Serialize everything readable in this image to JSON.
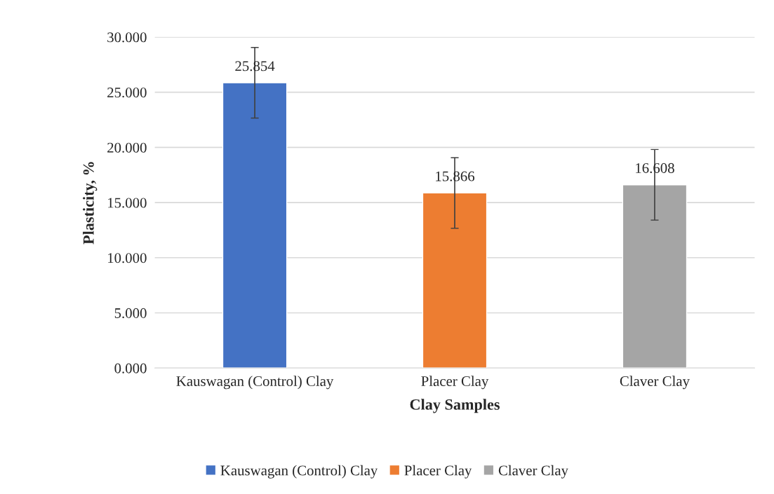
{
  "chart_data": {
    "type": "bar",
    "xlabel": "Clay Samples",
    "ylabel": "Plasticity, %",
    "categories": [
      "Kauswagan (Control) Clay",
      "Placer Clay",
      "Claver Clay"
    ],
    "series": [
      {
        "name": "Kauswagan (Control) Clay",
        "color": "#4472c4",
        "values": [
          25.854,
          null,
          null
        ],
        "errors": [
          3.2,
          null,
          null
        ]
      },
      {
        "name": "Placer Clay",
        "color": "#ed7d31",
        "values": [
          null,
          15.866,
          null
        ],
        "errors": [
          null,
          3.2,
          null
        ]
      },
      {
        "name": "Claver Clay",
        "color": "#a5a5a5",
        "values": [
          null,
          null,
          16.608
        ],
        "errors": [
          null,
          null,
          3.2
        ]
      }
    ],
    "ylim": [
      0,
      30
    ],
    "yticks": [
      {
        "value": 0,
        "label": "0.000"
      },
      {
        "value": 5,
        "label": "5.000"
      },
      {
        "value": 10,
        "label": "10.000"
      },
      {
        "value": 15,
        "label": "15.000"
      },
      {
        "value": 20,
        "label": "20.000"
      },
      {
        "value": 25,
        "label": "25.000"
      },
      {
        "value": 30,
        "label": "30.000"
      }
    ],
    "grid": "y",
    "legend": "bottom",
    "data_labels": true
  }
}
